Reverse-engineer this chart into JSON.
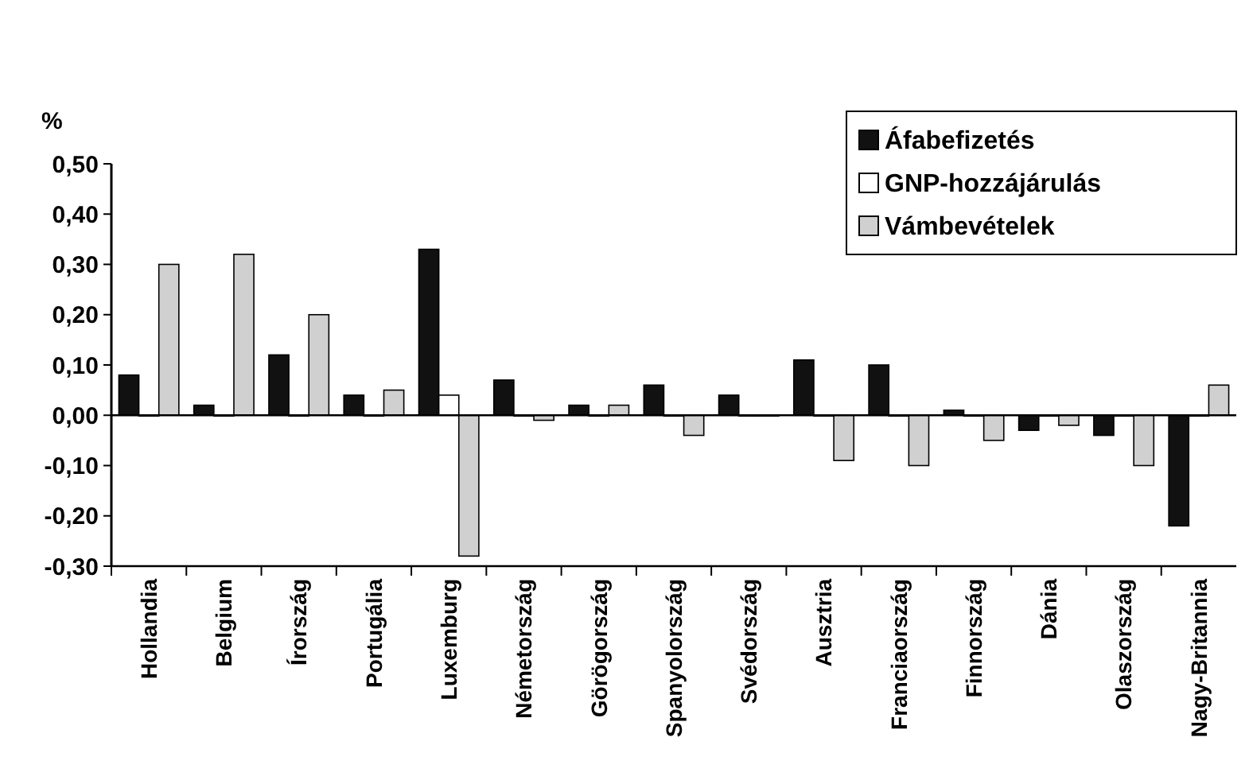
{
  "chart_data": {
    "type": "bar",
    "ylabel": "%",
    "categories": [
      "Hollandia",
      "Belgium",
      "Írország",
      "Portugália",
      "Luxemburg",
      "Németország",
      "Görögország",
      "Spanyolország",
      "Svédország",
      "Ausztria",
      "Franciaország",
      "Finnország",
      "Dánia",
      "Olaszország",
      "Nagy-Britannia"
    ],
    "series": [
      {
        "name": "Áfabefizetés",
        "color": "#111111",
        "values": [
          0.08,
          0.02,
          0.12,
          0.04,
          0.33,
          0.07,
          0.02,
          0.06,
          0.04,
          0.11,
          0.1,
          0.01,
          -0.03,
          -0.04,
          -0.22
        ]
      },
      {
        "name": "GNP-hozzájárulás",
        "color": "#ffffff",
        "values": [
          0,
          0,
          0,
          0,
          0.04,
          0,
          0,
          0,
          0,
          0,
          0,
          0,
          0,
          0,
          0
        ]
      },
      {
        "name": "Vámbevételek",
        "color": "#d0d0d0",
        "values": [
          0.3,
          0.32,
          0.2,
          0.05,
          -0.28,
          -0.01,
          0.02,
          -0.04,
          0,
          -0.09,
          -0.1,
          -0.05,
          -0.02,
          -0.1,
          0.06
        ]
      }
    ],
    "ylim": [
      -0.3,
      0.5
    ],
    "yticks": [
      {
        "value": -0.3,
        "label": "-0,30"
      },
      {
        "value": -0.2,
        "label": "-0,20"
      },
      {
        "value": -0.1,
        "label": "-0,10"
      },
      {
        "value": 0,
        "label": "0,00"
      },
      {
        "value": 0.1,
        "label": "0,10"
      },
      {
        "value": 0.2,
        "label": "0,20"
      },
      {
        "value": 0.3,
        "label": "0,30"
      },
      {
        "value": 0.4,
        "label": "0,40"
      },
      {
        "value": 0.5,
        "label": "0,50"
      }
    ],
    "legend": "top right"
  }
}
